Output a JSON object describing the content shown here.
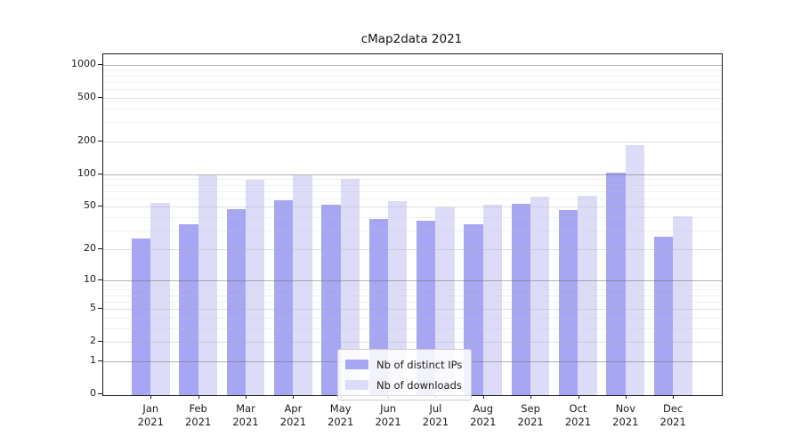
{
  "title": "cMap2data 2021",
  "chart_data": {
    "type": "bar",
    "title": "cMap2data 2021",
    "categories": [
      "Jan",
      "Feb",
      "Mar",
      "Apr",
      "May",
      "Jun",
      "Jul",
      "Aug",
      "Sep",
      "Oct",
      "Nov",
      "Dec"
    ],
    "category_year": "2021",
    "series": [
      {
        "name": "Nb of distinct IPs",
        "color": "#a6a6f2",
        "values": [
          26,
          35,
          49,
          59,
          53,
          39,
          38,
          35,
          54,
          48,
          105,
          27
        ]
      },
      {
        "name": "Nb of downloads",
        "color": "#dcdcf8",
        "values": [
          55,
          99,
          90,
          100,
          92,
          58,
          50,
          53,
          63,
          64,
          190,
          42
        ]
      }
    ],
    "y_scale": "log10(value+1)",
    "y_ticks": [
      0,
      1,
      2,
      5,
      10,
      20,
      50,
      100,
      200,
      500,
      1000
    ],
    "y_decade_ticks": [
      1,
      10,
      100,
      1000
    ],
    "y_minor_ticks": [
      3,
      4,
      6,
      7,
      8,
      9,
      30,
      40,
      60,
      70,
      80,
      90,
      300,
      400,
      600,
      700,
      800,
      900
    ],
    "ylim": [
      0,
      1250
    ],
    "grid": true,
    "legend_position": "lower center"
  }
}
